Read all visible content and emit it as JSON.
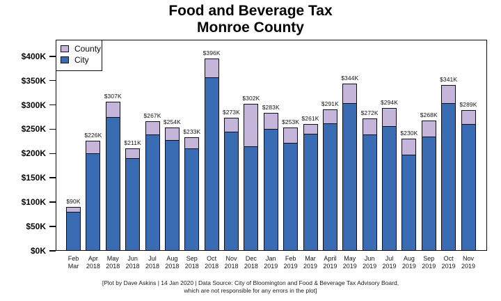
{
  "title": {
    "line1": "Food and Beverage Tax",
    "line2": "Monroe County"
  },
  "legend": {
    "items": [
      {
        "label": "County",
        "color": "#c6b5db"
      },
      {
        "label": "City",
        "color": "#3a6cb4"
      }
    ]
  },
  "footer": {
    "line1": "[Plot by Dave Askins | 14 Jan 2020 | Data Source: City of Bloomington and Food & Beverage Tax Advisory Board,",
    "line2": "which are not responsible for any errors in the plot]"
  },
  "chart_data": {
    "type": "bar",
    "stacked": true,
    "title": "Food and Beverage Tax Monroe County",
    "units": "thousands of USD",
    "categories": [
      [
        "Feb",
        "Mar"
      ],
      [
        "Apr",
        "2018"
      ],
      [
        "May",
        "2018"
      ],
      [
        "Jun",
        "2018"
      ],
      [
        "Jul",
        "2018"
      ],
      [
        "Aug",
        "2018"
      ],
      [
        "Sep",
        "2018"
      ],
      [
        "Oct",
        "2018"
      ],
      [
        "Nov",
        "2018"
      ],
      [
        "Dec",
        "2018"
      ],
      [
        "Jan",
        "2019"
      ],
      [
        "Feb",
        "2019"
      ],
      [
        "Mar",
        "2019"
      ],
      [
        "April",
        "2019"
      ],
      [
        "May",
        "2019"
      ],
      [
        "Jun",
        "2019"
      ],
      [
        "Jul",
        "2019"
      ],
      [
        "Aug",
        "2019"
      ],
      [
        "Sep",
        "2019"
      ],
      [
        "Oct",
        "2019"
      ],
      [
        "Nov",
        "2019"
      ]
    ],
    "series": [
      {
        "name": "City",
        "color": "#3a6cb4",
        "values": [
          80,
          200,
          275,
          190,
          239,
          228,
          210,
          356,
          245,
          215,
          251,
          222,
          240,
          262,
          304,
          239,
          257,
          197,
          235,
          304,
          260
        ]
      },
      {
        "name": "County",
        "color": "#c6b5db",
        "values": [
          10,
          26,
          32,
          21,
          28,
          26,
          23,
          40,
          28,
          87,
          32,
          31,
          21,
          29,
          40,
          33,
          37,
          33,
          33,
          37,
          29
        ]
      }
    ],
    "totals": [
      90,
      226,
      307,
      211,
      267,
      254,
      233,
      396,
      273,
      302,
      283,
      253,
      261,
      291,
      344,
      272,
      294,
      230,
      268,
      341,
      289
    ],
    "total_labels": [
      "$90K",
      "$226K",
      "$307K",
      "$211K",
      "$267K",
      "$254K",
      "$233K",
      "$396K",
      "$273K",
      "$302K",
      "$283K",
      "$253K",
      "$261K",
      "$291K",
      "$344K",
      "$272K",
      "$294K",
      "$230K",
      "$268K",
      "$341K",
      "$289K"
    ],
    "yticks": [
      0,
      50,
      100,
      150,
      200,
      250,
      300,
      350,
      400
    ],
    "ytick_labels": [
      "$0K",
      "$50K",
      "$100K",
      "$150K",
      "$200K",
      "$250K",
      "$300K",
      "$350K",
      "$400K"
    ],
    "ylim": [
      0,
      434
    ],
    "grid": false,
    "legend_position": "top-left"
  }
}
